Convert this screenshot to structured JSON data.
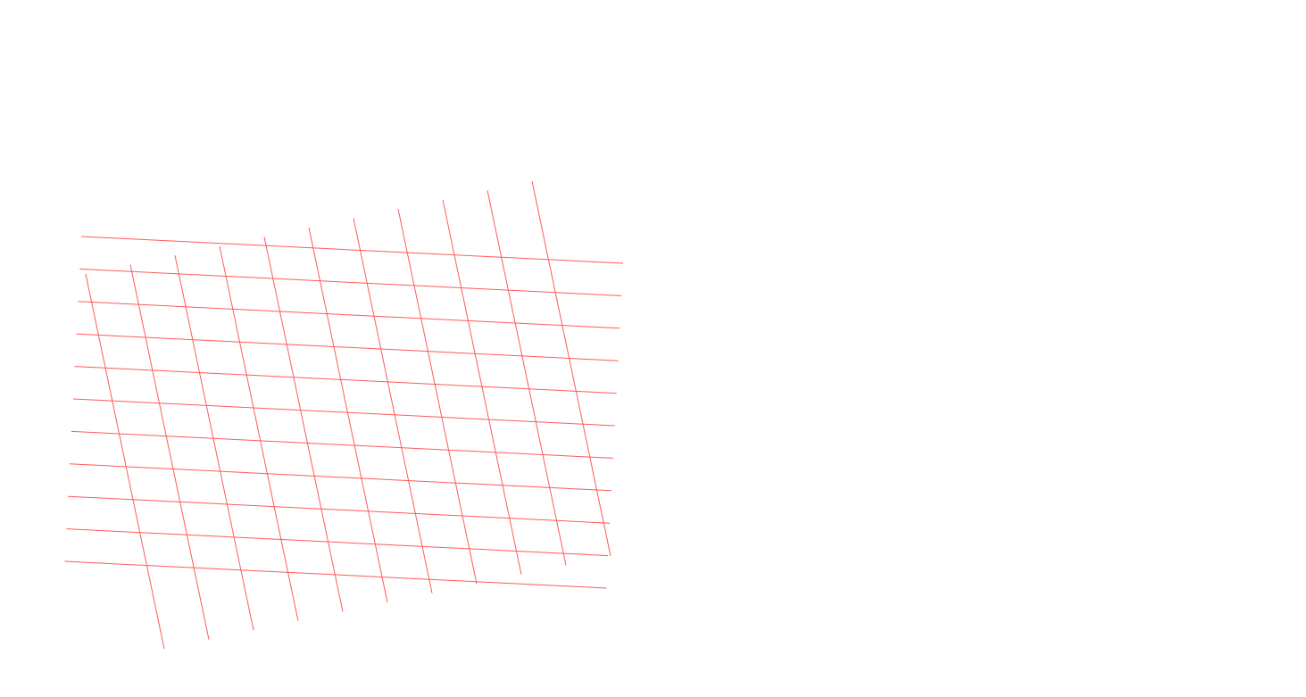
{
  "canvas": {
    "background_color": "#ffffff"
  },
  "grid": {
    "line_color": "#ff5a5a",
    "horizontal_line_count": 11,
    "vertical_line_count": 11
  }
}
